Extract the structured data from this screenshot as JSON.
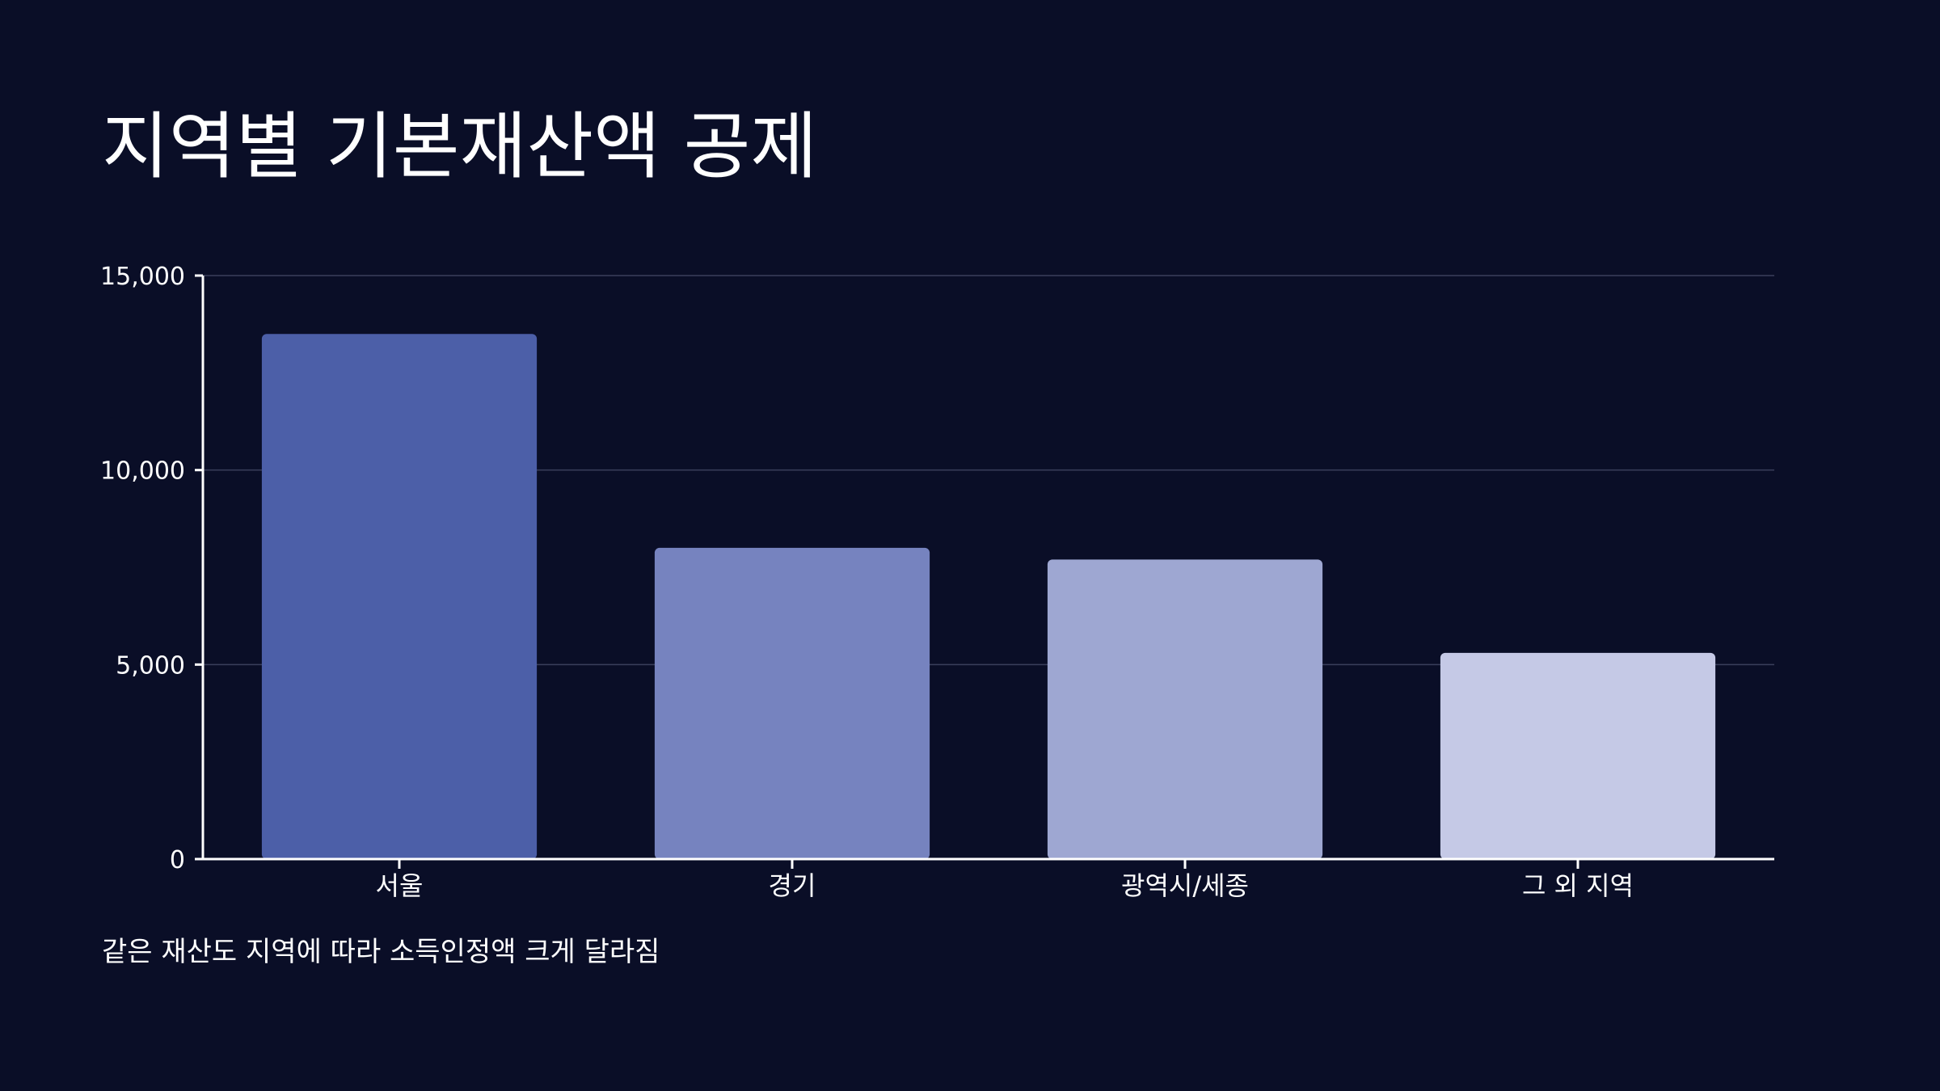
{
  "slide": {
    "title": "지역별 기본재산액 공제",
    "caption": "같은 재산도 지역에 따라 소득인정액 크게 달라짐"
  },
  "colors": {
    "background": "#0a0e27",
    "axis": "#ffffff",
    "grid": "#3a3f5c",
    "text": "#ffffff"
  },
  "chart_data": {
    "type": "bar",
    "title": "",
    "xlabel": "",
    "ylabel": "",
    "categories": [
      "서울",
      "경기",
      "광역시/세종",
      "그 외 지역"
    ],
    "values": [
      13500,
      8000,
      7700,
      5300
    ],
    "bar_colors": [
      "#4c5fa8",
      "#7683bf",
      "#9ea7d2",
      "#c5c9e6"
    ],
    "ylim": [
      0,
      15000
    ],
    "yticks": [
      0,
      5000,
      10000,
      15000
    ],
    "ytick_labels": [
      "0",
      "5,000",
      "10,000",
      "15,000"
    ],
    "grid": true,
    "legend": "none"
  }
}
